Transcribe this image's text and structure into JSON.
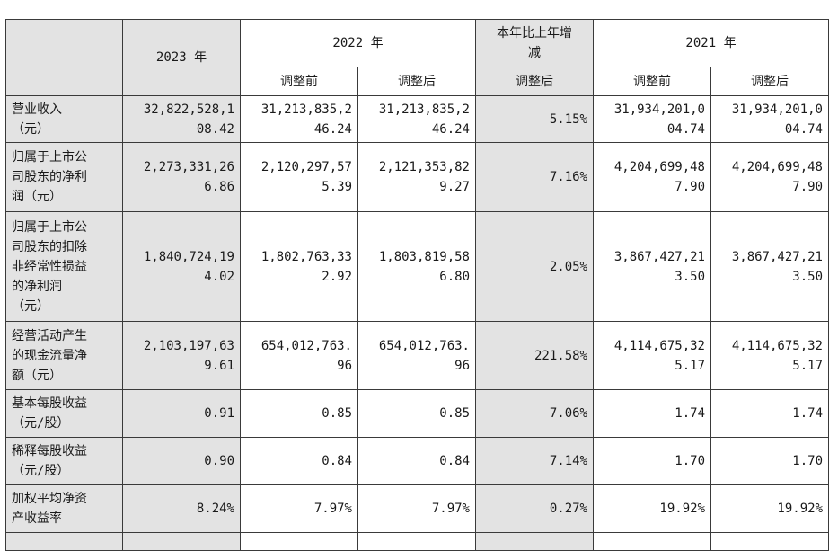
{
  "header": {
    "y2023": "2023 年",
    "y2022": "2022 年",
    "change": "本年比上年增\n减",
    "y2021": "2021 年",
    "before": "调整前",
    "after": "调整后",
    "change_sub": "调整后"
  },
  "rows": [
    {
      "label": "营业收入\n（元）",
      "v2023": "32,822,528,1\n08.42",
      "v2022_before": "31,213,835,2\n46.24",
      "v2022_after": "31,213,835,2\n46.24",
      "change": "5.15%",
      "v2021_before": "31,934,201,0\n04.74",
      "v2021_after": "31,934,201,0\n04.74"
    },
    {
      "label": "归属于上市公\n司股东的净利\n润（元）",
      "v2023": "2,273,331,26\n6.86",
      "v2022_before": "2,120,297,57\n5.39",
      "v2022_after": "2,121,353,82\n9.27",
      "change": "7.16%",
      "v2021_before": "4,204,699,48\n7.90",
      "v2021_after": "4,204,699,48\n7.90"
    },
    {
      "label": "归属于上市公\n司股东的扣除\n非经常性损益\n的净利润\n（元）",
      "v2023": "1,840,724,19\n4.02",
      "v2022_before": "1,802,763,33\n2.92",
      "v2022_after": "1,803,819,58\n6.80",
      "change": "2.05%",
      "v2021_before": "3,867,427,21\n3.50",
      "v2021_after": "3,867,427,21\n3.50"
    },
    {
      "label": "经营活动产生\n的现金流量净\n额（元）",
      "v2023": "2,103,197,63\n9.61",
      "v2022_before": "654,012,763.\n96",
      "v2022_after": "654,012,763.\n96",
      "change": "221.58%",
      "v2021_before": "4,114,675,32\n5.17",
      "v2021_after": "4,114,675,32\n5.17"
    },
    {
      "label": "基本每股收益\n（元/股）",
      "v2023": "0.91",
      "v2022_before": "0.85",
      "v2022_after": "0.85",
      "change": "7.06%",
      "v2021_before": "1.74",
      "v2021_after": "1.74"
    },
    {
      "label": "稀释每股收益\n（元/股）",
      "v2023": "0.90",
      "v2022_before": "0.84",
      "v2022_after": "0.84",
      "change": "7.14%",
      "v2021_before": "1.70",
      "v2021_after": "1.70"
    },
    {
      "label": "加权平均净资\n产收益率",
      "v2023": "8.24%",
      "v2022_before": "7.97%",
      "v2022_after": "7.97%",
      "change": "0.27%",
      "v2021_before": "19.92%",
      "v2021_after": "19.92%"
    }
  ]
}
